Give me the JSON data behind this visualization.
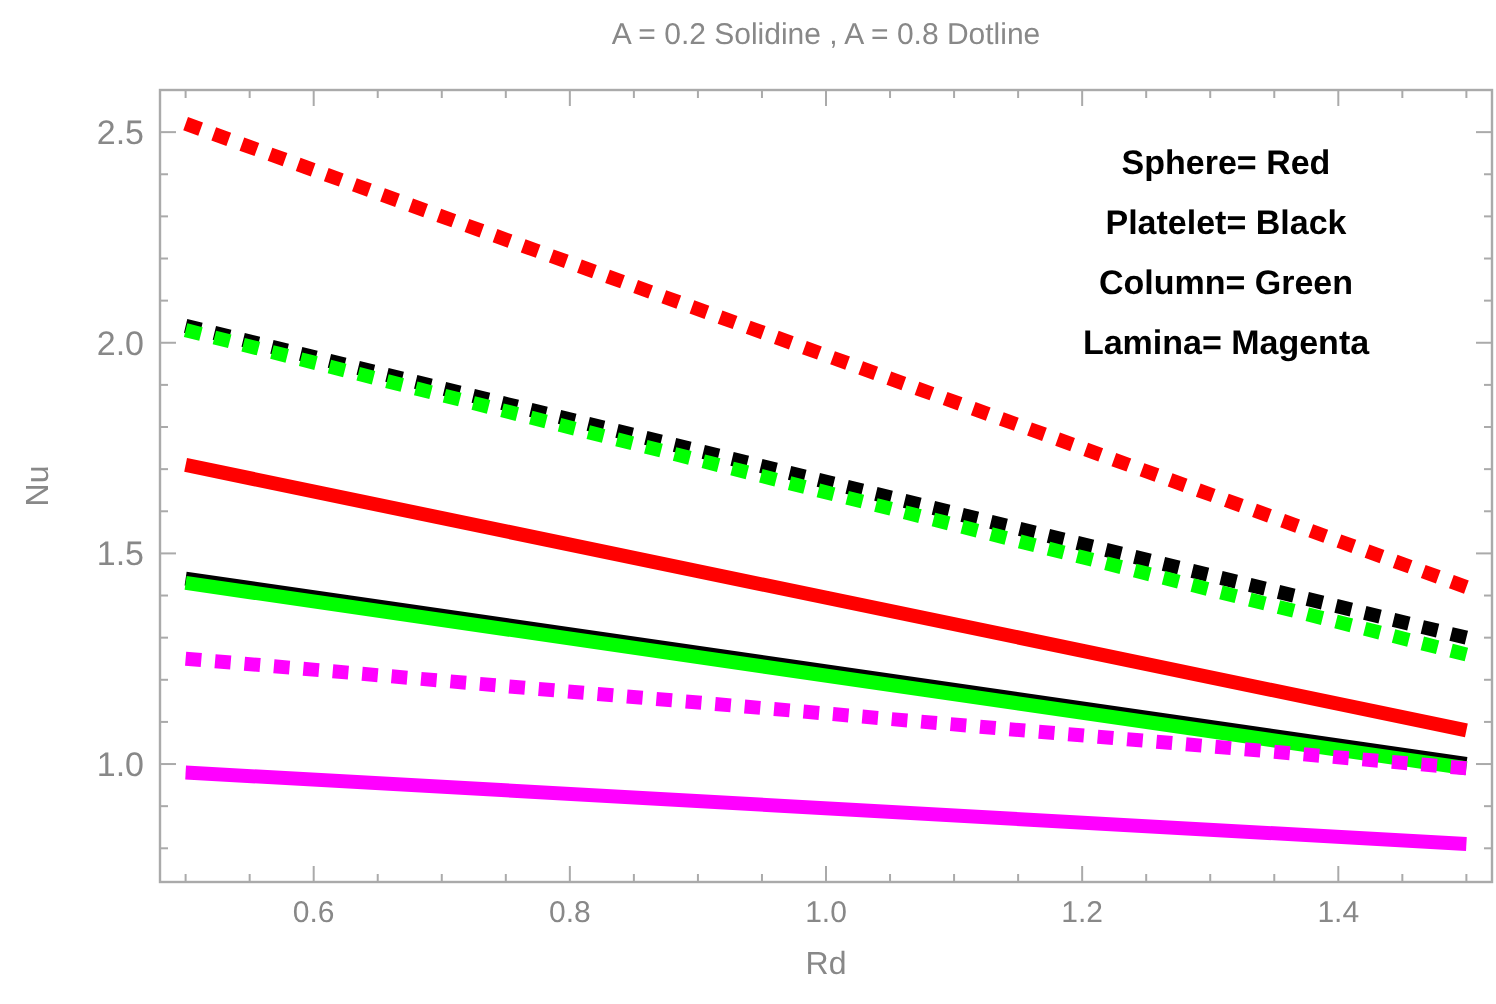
{
  "chart_data": {
    "type": "line",
    "title": "A = 0.2  Solidine  , A = 0.8  Dotline",
    "xlabel": "Rd",
    "ylabel": "Nu",
    "x": [
      0.5,
      1.5
    ],
    "xlim": [
      0.48,
      1.52
    ],
    "ylim": [
      0.72,
      2.6
    ],
    "xticks": [
      {
        "value": 0.5,
        "label": null
      },
      {
        "value": 0.55,
        "label": null
      },
      0.6,
      {
        "value": 0.65,
        "label": null
      },
      {
        "value": 0.7,
        "label": null
      },
      {
        "value": 0.75,
        "label": null
      },
      0.8,
      {
        "value": 0.85,
        "label": null
      },
      {
        "value": 0.9,
        "label": null
      },
      {
        "value": 0.95,
        "label": null
      },
      {
        "value": 1.0,
        "label": "1.0"
      },
      {
        "value": 1.05,
        "label": null
      },
      {
        "value": 1.1,
        "label": null
      },
      {
        "value": 1.15,
        "label": null
      },
      1.2,
      {
        "value": 1.25,
        "label": null
      },
      {
        "value": 1.3,
        "label": null
      },
      {
        "value": 1.35,
        "label": null
      },
      1.4,
      {
        "value": 1.45,
        "label": null
      },
      {
        "value": 1.5,
        "label": null
      }
    ],
    "yticks": [
      {
        "value": 0.8,
        "label": null
      },
      {
        "value": 0.9,
        "label": null
      },
      {
        "value": 1.0,
        "label": "1.0"
      },
      {
        "value": 1.1,
        "label": null
      },
      {
        "value": 1.2,
        "label": null
      },
      {
        "value": 1.3,
        "label": null
      },
      {
        "value": 1.4,
        "label": null
      },
      1.5,
      {
        "value": 1.6,
        "label": null
      },
      {
        "value": 1.7,
        "label": null
      },
      {
        "value": 1.8,
        "label": null
      },
      {
        "value": 1.9,
        "label": null
      },
      {
        "value": 2.0,
        "label": "2.0"
      },
      {
        "value": 2.1,
        "label": null
      },
      {
        "value": 2.2,
        "label": null
      },
      {
        "value": 2.3,
        "label": null
      },
      {
        "value": 2.4,
        "label": null
      },
      2.5
    ],
    "grid": false,
    "marker": "none",
    "series": [
      {
        "color": "#ff0000",
        "line_style": "dotted",
        "values": [
          2.52,
          1.42
        ]
      },
      {
        "color": "#000000",
        "line_style": "dotted",
        "values": [
          2.04,
          1.3
        ]
      },
      {
        "color": "#00ff00",
        "line_style": "dotted",
        "values": [
          2.03,
          1.26
        ]
      },
      {
        "color": "#ff0000",
        "line_style": "solid",
        "values": [
          1.71,
          1.08
        ]
      },
      {
        "color": "#000000",
        "line_style": "solid",
        "values": [
          1.44,
          1.0
        ]
      },
      {
        "color": "#00ff00",
        "line_style": "solid",
        "values": [
          1.43,
          0.99
        ]
      },
      {
        "color": "#ff00ff",
        "line_style": "dotted",
        "values": [
          1.25,
          0.99
        ]
      },
      {
        "color": "#ff00ff",
        "line_style": "solid",
        "values": [
          0.98,
          0.81
        ]
      }
    ],
    "annotations": [
      "Sphere= Red",
      "Platelet= Black",
      "Column= Green",
      "Lamina= Magenta"
    ]
  }
}
